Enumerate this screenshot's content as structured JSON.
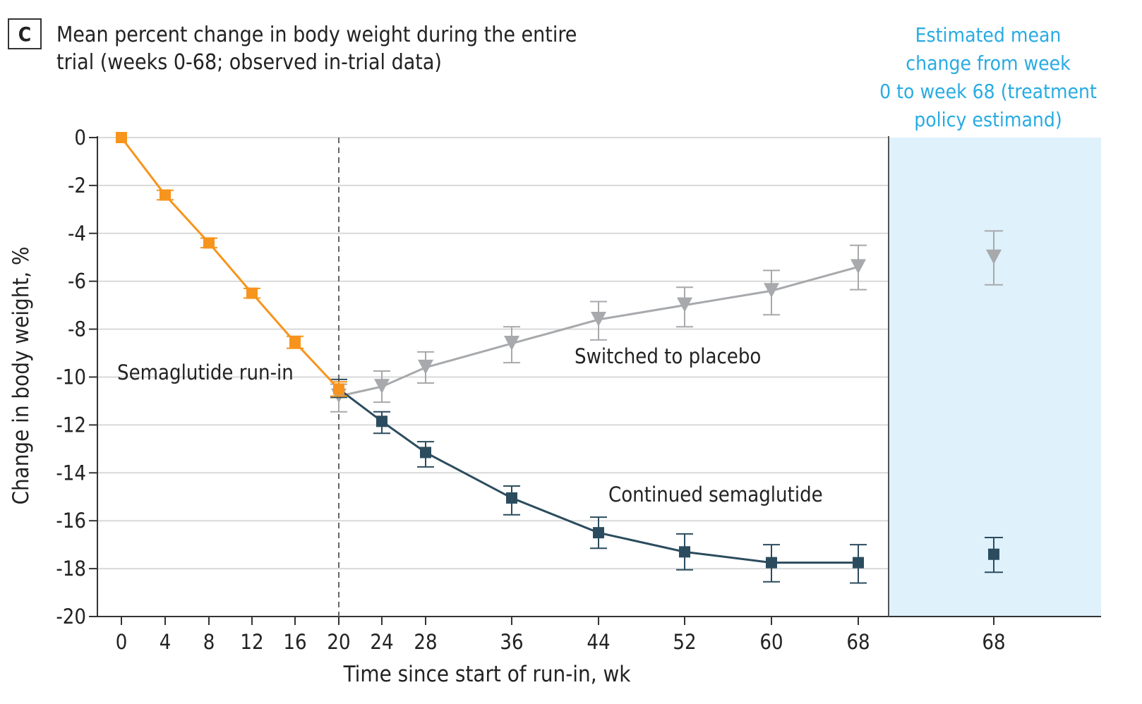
{
  "panel_label": "C",
  "title": "Mean percent change in body weight during the entire\ntrial (weeks 0-68; observed in-trial data)",
  "side_panel_title": "Estimated mean\nchange from week\n0 to week 68 (treatment\npolicy estimand)",
  "colors": {
    "run_in": "#f7941d",
    "placebo": "#a7a9ac",
    "semaglutide": "#2b4c5e",
    "side_panel_bg": "#dff1fb",
    "side_title": "#29abe2"
  },
  "chart_data": {
    "type": "line",
    "xlabel": "Time since start of run-in, wk",
    "ylabel": "Change in body weight, %",
    "ylim": [
      -20,
      0
    ],
    "yticks": [
      0,
      -2,
      -4,
      -6,
      -8,
      -10,
      -12,
      -14,
      -16,
      -18,
      -20
    ],
    "xticks": [
      0,
      4,
      8,
      12,
      16,
      20,
      24,
      28,
      36,
      44,
      52,
      60,
      68
    ],
    "grid": true,
    "series": [
      {
        "name": "Semaglutide run-in",
        "marker": "square",
        "x": [
          0,
          4,
          8,
          12,
          16,
          20
        ],
        "y": [
          0,
          -2.4,
          -4.4,
          -6.5,
          -8.55,
          -10.5
        ],
        "err_low": [
          0,
          -2.6,
          -4.6,
          -6.7,
          -8.8,
          -10.8
        ],
        "err_high": [
          0,
          -2.2,
          -4.2,
          -6.3,
          -8.3,
          -10.2
        ]
      },
      {
        "name": "Switched to placebo",
        "marker": "triangle-down",
        "x": [
          20,
          24,
          28,
          36,
          44,
          52,
          60,
          68
        ],
        "y": [
          -10.8,
          -10.4,
          -9.6,
          -8.6,
          -7.6,
          -7.0,
          -6.4,
          -5.4
        ],
        "err_low": [
          -11.45,
          -11.05,
          -10.25,
          -9.4,
          -8.45,
          -7.9,
          -7.4,
          -6.35
        ],
        "err_high": [
          -10.3,
          -9.75,
          -8.95,
          -7.9,
          -6.85,
          -6.25,
          -5.55,
          -4.5
        ]
      },
      {
        "name": "Continued semaglutide",
        "marker": "square",
        "x": [
          20,
          24,
          28,
          36,
          44,
          52,
          60,
          68
        ],
        "y": [
          -10.5,
          -11.85,
          -13.15,
          -15.05,
          -16.5,
          -17.3,
          -17.75,
          -17.75
        ],
        "err_low": [
          -10.85,
          -12.35,
          -13.75,
          -15.75,
          -17.15,
          -18.05,
          -18.55,
          -18.6
        ],
        "err_high": [
          -10.1,
          -11.45,
          -12.7,
          -14.55,
          -15.85,
          -16.55,
          -17.0,
          -17.0
        ]
      }
    ],
    "treatment_policy_estimand": {
      "x_label": "68",
      "points": [
        {
          "series": "Switched to placebo",
          "y": -5.0,
          "err_low": -6.15,
          "err_high": -3.9
        },
        {
          "series": "Continued semaglutide",
          "y": -17.4,
          "err_low": -18.15,
          "err_high": -16.7
        }
      ]
    },
    "reference_line_x": 20
  }
}
